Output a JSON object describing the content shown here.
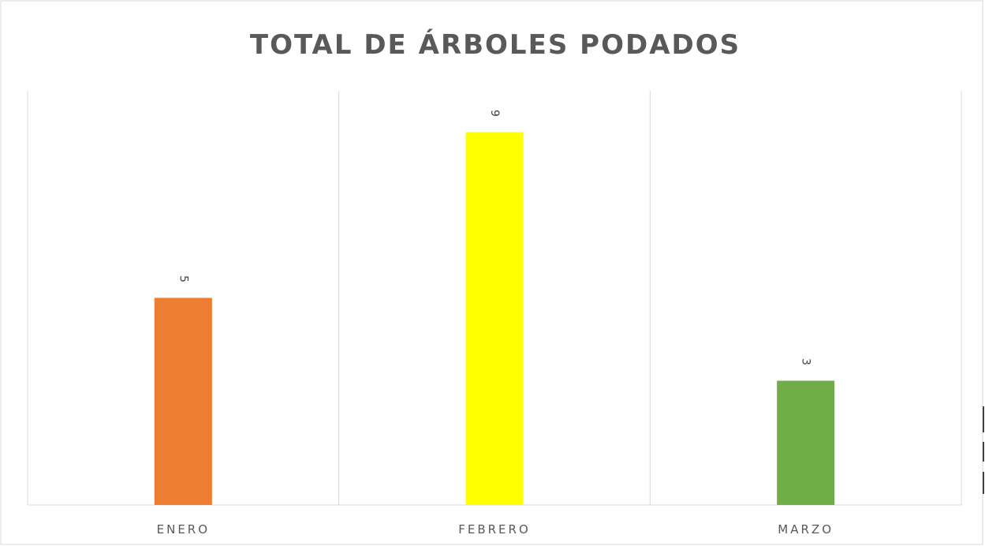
{
  "chart_data": {
    "type": "bar",
    "title": "TOTAL DE ÁRBOLES PODADOS",
    "categories": [
      "ENERO",
      "FEBRERO",
      "MARZO"
    ],
    "values": [
      5,
      9,
      3
    ],
    "colors": [
      "#ED7D31",
      "#FFFF00",
      "#70AD47"
    ],
    "ylim": [
      0,
      10
    ],
    "grid": "vertical category separators",
    "legend": "none",
    "data_labels": "rotated, above bars"
  }
}
